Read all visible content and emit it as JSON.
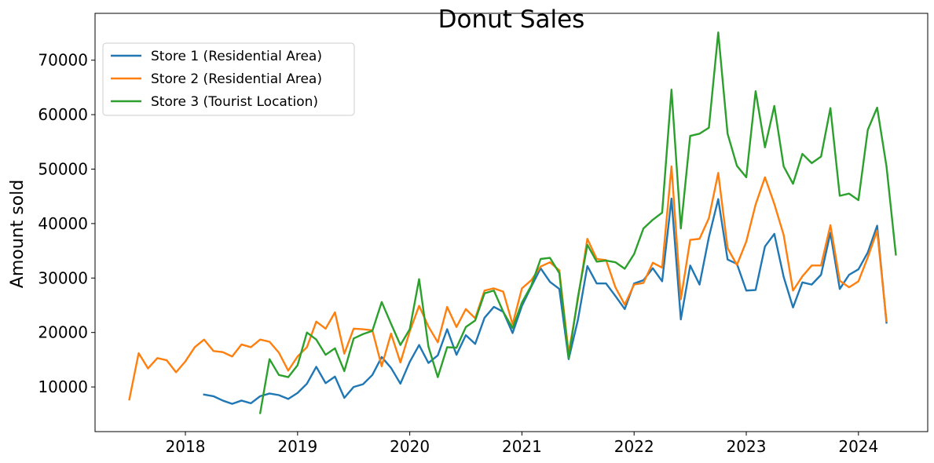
{
  "chart_data": {
    "type": "line",
    "title": "Donut Sales",
    "xlabel": "",
    "ylabel": "Amount sold",
    "x_ticks": [
      "2018",
      "2019",
      "2020",
      "2021",
      "2022",
      "2023",
      "2024"
    ],
    "y_ticks": [
      "10000",
      "20000",
      "30000",
      "40000",
      "50000",
      "60000",
      "70000"
    ],
    "xlim": [
      "2017-03-13",
      "2024-08-14"
    ],
    "ylim": [
      1800,
      78600
    ],
    "grid": false,
    "legend_position": "top-left",
    "series": [
      {
        "name": "Store 1 (Residential Area)",
        "color": "#1f77b4",
        "start": "2018-03",
        "values": [
          8600,
          8300,
          7500,
          6900,
          7500,
          7000,
          8300,
          8800,
          8500,
          7800,
          8900,
          10600,
          13700,
          10700,
          11900,
          8000,
          10000,
          10500,
          12200,
          15500,
          13500,
          10600,
          14600,
          17700,
          14400,
          15800,
          20600,
          15900,
          19500,
          17900,
          22700,
          24700,
          23800,
          19900,
          24900,
          28400,
          31800,
          29300,
          28000,
          15100,
          22400,
          32200,
          29000,
          29000,
          26700,
          24300,
          29000,
          29600,
          31800,
          29400,
          44600,
          22400,
          32300,
          28800,
          37500,
          44500,
          33400,
          32600,
          27700,
          27800,
          35800,
          38100,
          30200,
          24600,
          29200,
          28800,
          30600,
          38300,
          28000,
          30600,
          31600,
          34700,
          39600,
          21800
        ]
      },
      {
        "name": "Store 2 (Residential Area)",
        "color": "#ff7f0e",
        "start": "2017-07",
        "values": [
          7700,
          16200,
          13400,
          15300,
          14900,
          12700,
          14700,
          17300,
          18700,
          16600,
          16400,
          15600,
          17800,
          17300,
          18700,
          18300,
          16300,
          13000,
          15600,
          17300,
          22000,
          20700,
          23700,
          16100,
          20700,
          20600,
          20400,
          13800,
          19800,
          14500,
          20200,
          24900,
          21100,
          18200,
          24700,
          21000,
          24300,
          22600,
          27700,
          28100,
          27500,
          21500,
          28100,
          29600,
          32100,
          32900,
          31400,
          16200,
          26200,
          37200,
          33500,
          33300,
          28300,
          25100,
          28800,
          29100,
          32800,
          31900,
          50500,
          26100,
          37000,
          37200,
          41000,
          49300,
          35500,
          32400,
          36700,
          43500,
          48500,
          43600,
          37900,
          27700,
          30300,
          32300,
          32300,
          39700,
          29500,
          28300,
          29400,
          33800,
          38700,
          22100
        ]
      },
      {
        "name": "Store 3 (Tourist Location)",
        "color": "#2ca02c",
        "start": "2018-09",
        "values": [
          5200,
          15100,
          12200,
          11800,
          14000,
          20000,
          18700,
          15900,
          17100,
          12900,
          18900,
          19700,
          20300,
          25600,
          21600,
          17700,
          20600,
          29800,
          17400,
          11800,
          17300,
          17200,
          21000,
          22200,
          27200,
          27700,
          23800,
          20800,
          25500,
          28600,
          33500,
          33700,
          30900,
          15300,
          26600,
          36100,
          33000,
          33200,
          32900,
          31700,
          34400,
          39100,
          40700,
          42000,
          64600,
          39100,
          56100,
          56500,
          57600,
          75100,
          56500,
          50600,
          48500,
          64300,
          54000,
          61600,
          50500,
          47300,
          52800,
          51100,
          52300,
          61200,
          45100,
          45500,
          44300,
          57200,
          61300,
          50500,
          34300
        ]
      }
    ]
  }
}
